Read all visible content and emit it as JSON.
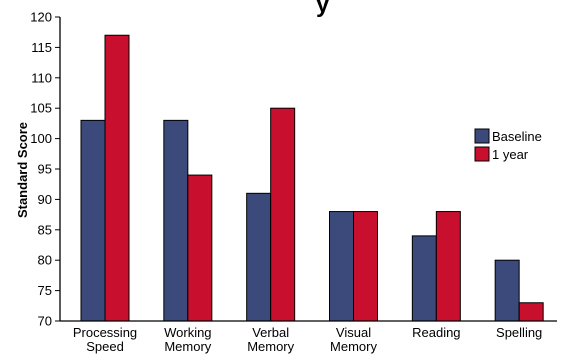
{
  "chart_data": {
    "type": "bar",
    "title_fragment": "y",
    "ylabel": "Standard Score",
    "ylim": [
      70,
      120
    ],
    "yticks": [
      70,
      75,
      80,
      85,
      90,
      95,
      100,
      105,
      110,
      115,
      120
    ],
    "categories": [
      [
        "Processing",
        "Speed"
      ],
      [
        "Working",
        "Memory"
      ],
      [
        "Verbal",
        "Memory"
      ],
      [
        "Visual",
        "Memory"
      ],
      [
        "Reading"
      ],
      [
        "Spelling"
      ]
    ],
    "series": [
      {
        "name": "Baseline",
        "color": "#3b4a7a",
        "values": [
          103,
          103,
          91,
          88,
          84,
          80
        ]
      },
      {
        "name": "1 year",
        "color": "#c8102e",
        "values": [
          117,
          94,
          105,
          88,
          88,
          73
        ]
      }
    ],
    "legend_position": "right",
    "grid": false
  }
}
